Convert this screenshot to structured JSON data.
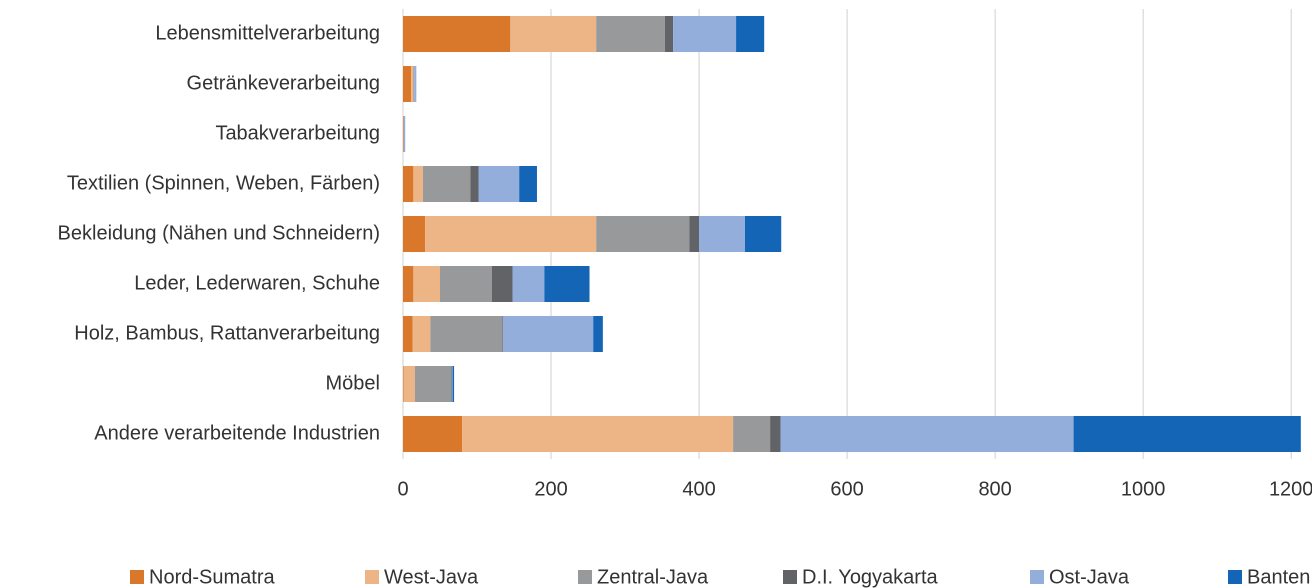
{
  "chart_data": {
    "type": "bar",
    "orientation": "horizontal",
    "stacked": true,
    "categories": [
      "Lebensmittelverarbeitung",
      "Getränkeverarbeitung",
      "Tabakverarbeitung",
      "Textilien (Spinnen, Weben, Färben)",
      "Bekleidung (Nähen und Schneidern)",
      "Leder, Lederwaren, Schuhe",
      "Holz, Bambus, Rattanverarbeitung",
      "Möbel",
      "Andere verarbeitende Industrien"
    ],
    "series": [
      {
        "name": "Nord-Sumatra",
        "color": "#d9772b",
        "values": [
          145,
          11,
          1,
          14,
          30,
          14,
          13,
          1,
          80
        ]
      },
      {
        "name": "West-Java",
        "color": "#edb586",
        "values": [
          116,
          3,
          0,
          13,
          231,
          36,
          24,
          15,
          366
        ]
      },
      {
        "name": "Zentral-Java",
        "color": "#98999b",
        "values": [
          93,
          1,
          0,
          64,
          126,
          70,
          97,
          49,
          50
        ]
      },
      {
        "name": "D.I. Yogyakarta",
        "color": "#626366",
        "values": [
          11,
          0,
          0,
          11,
          13,
          28,
          1,
          1,
          14
        ]
      },
      {
        "name": "Ost-Java",
        "color": "#93aedb",
        "values": [
          85,
          3,
          2,
          55,
          62,
          43,
          122,
          1,
          396
        ]
      },
      {
        "name": "Banten",
        "color": "#1465b5",
        "values": [
          38,
          0,
          0,
          24,
          49,
          61,
          13,
          2,
          307
        ]
      }
    ],
    "xlim": [
      0,
      1220
    ],
    "xticks": [
      0,
      200,
      400,
      600,
      800,
      1000,
      1200
    ],
    "grid": true,
    "legend": "bottom"
  }
}
